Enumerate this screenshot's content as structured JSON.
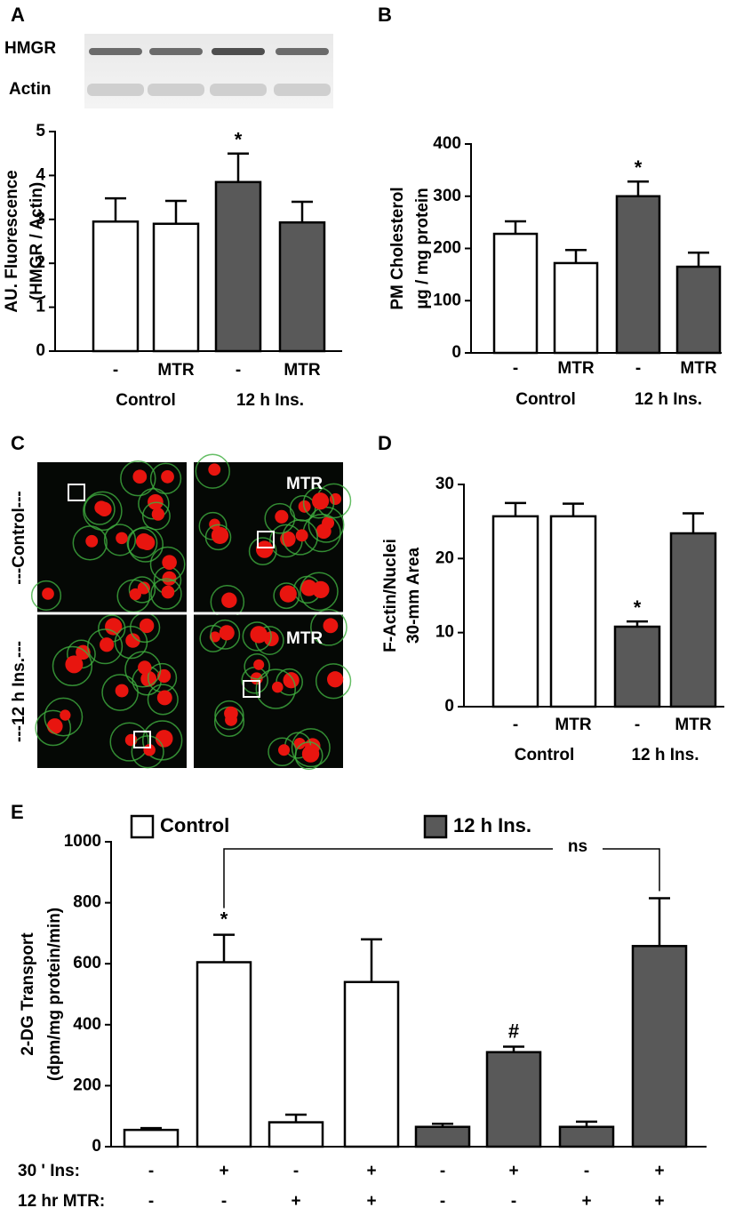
{
  "chart_data": [
    {
      "type": "bar",
      "panel": "A",
      "blot_rows": [
        "HMGR",
        "Actin"
      ],
      "ylabel": [
        "AU. Fluorescence",
        "(HMGR / Actin)"
      ],
      "categories": [
        "-",
        "MTR",
        "-",
        "MTR"
      ],
      "groups": [
        "Control",
        "12 h Ins."
      ],
      "values": [
        2.95,
        2.9,
        3.85,
        2.93
      ],
      "errors": [
        0.53,
        0.52,
        0.65,
        0.47
      ],
      "colors": [
        "#ffffff",
        "#ffffff",
        "#595959",
        "#595959"
      ],
      "ylim": [
        0,
        5
      ],
      "yticks": [
        0,
        1,
        2,
        3,
        4,
        5
      ],
      "annotations": [
        {
          "text": "*",
          "index": 2
        }
      ]
    },
    {
      "type": "bar",
      "panel": "B",
      "ylabel": [
        "PM Cholesterol",
        "µg / mg protein"
      ],
      "categories": [
        "-",
        "MTR",
        "-",
        "MTR"
      ],
      "groups": [
        "Control",
        "12 h Ins."
      ],
      "values": [
        228,
        172,
        300,
        165
      ],
      "errors": [
        24,
        25,
        28,
        27
      ],
      "colors": [
        "#ffffff",
        "#ffffff",
        "#595959",
        "#595959"
      ],
      "ylim": [
        0,
        400
      ],
      "yticks": [
        0,
        100,
        200,
        300,
        400
      ],
      "annotations": [
        {
          "text": "*",
          "index": 2
        }
      ]
    },
    {
      "type": "bar",
      "panel": "D",
      "ylabel": [
        "F-Actin/Nuclei",
        "30-mm Area"
      ],
      "categories": [
        "-",
        "MTR",
        "-",
        "MTR"
      ],
      "groups": [
        "Control",
        "12 h Ins."
      ],
      "values": [
        25.7,
        25.7,
        10.8,
        23.4
      ],
      "errors": [
        1.8,
        1.7,
        0.7,
        2.7
      ],
      "colors": [
        "#ffffff",
        "#ffffff",
        "#595959",
        "#595959"
      ],
      "ylim": [
        0,
        30
      ],
      "yticks": [
        0,
        10,
        20,
        30
      ],
      "annotations": [
        {
          "text": "*",
          "index": 2
        }
      ]
    },
    {
      "type": "grouped_bar",
      "panel": "E",
      "ylabel": [
        "2-DG Transport",
        "(dpm/mg protein/min)"
      ],
      "series": [
        {
          "name": "Control",
          "color": "#ffffff",
          "values": [
            55,
            605,
            80,
            540
          ],
          "errors": [
            6,
            90,
            25,
            140
          ]
        },
        {
          "name": "12 h Ins.",
          "color": "#595959",
          "values": [
            65,
            310,
            65,
            658
          ],
          "errors": [
            10,
            18,
            17,
            157
          ]
        }
      ],
      "row_labels": [
        "30 ' Ins:",
        "12 hr MTR:"
      ],
      "conditions": [
        [
          "-",
          "+",
          "-",
          "+",
          "-",
          "+",
          "-",
          "+"
        ],
        [
          "-",
          "-",
          "+",
          "+",
          "-",
          "-",
          "+",
          "+"
        ]
      ],
      "ylim": [
        0,
        1000
      ],
      "yticks": [
        0,
        200,
        400,
        600,
        800,
        1000
      ],
      "annotations": [
        {
          "text": "*",
          "series": 0,
          "index": 1
        },
        {
          "text": "#",
          "series": 1,
          "index": 1
        }
      ],
      "bracket": {
        "text": "ns",
        "from": [
          0,
          1
        ],
        "to": [
          1,
          3
        ]
      }
    }
  ],
  "image_panel": {
    "panel": "C",
    "row_labels": [
      "---Control---",
      "---12 h Ins.---"
    ],
    "tags": [
      "MTR",
      "MTR"
    ]
  }
}
